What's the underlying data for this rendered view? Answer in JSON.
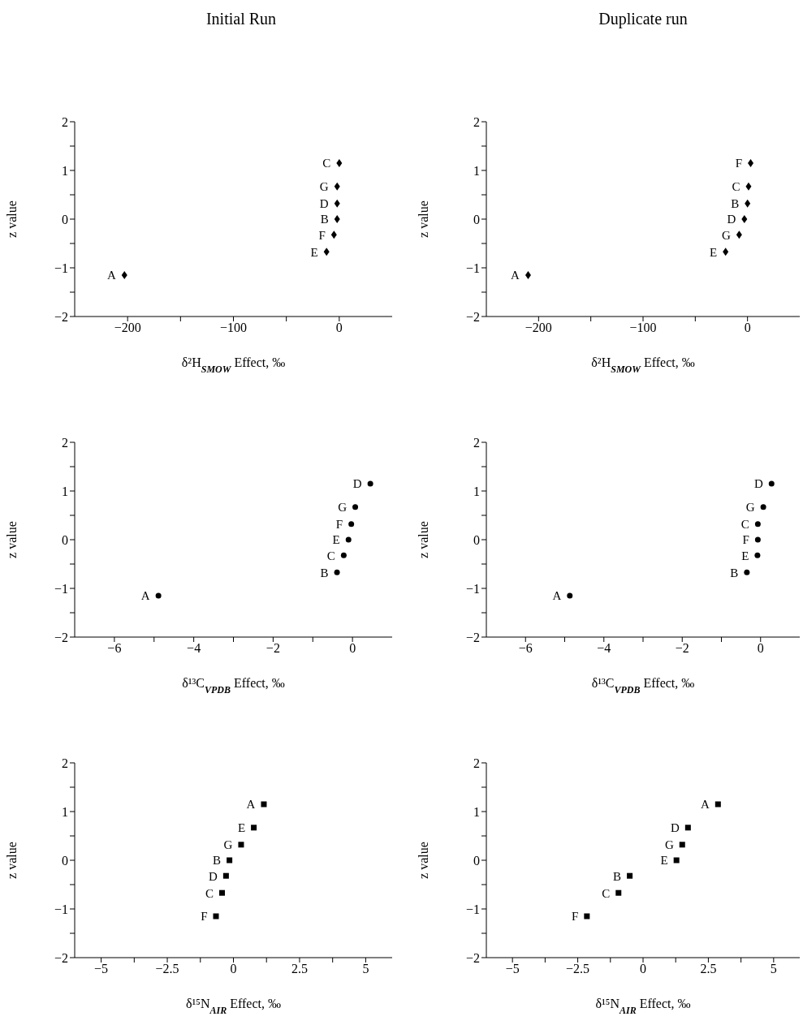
{
  "chart_data": [
    {
      "type": "scatter",
      "title": "Initial Run",
      "marker": "diamond",
      "color": "#000000",
      "xlabel": "δ²H$_{SMOW}$ Effect, ‰",
      "ylabel": "z value",
      "x": [
        0,
        -2,
        -2,
        -2,
        -5,
        -12,
        -203
      ],
      "values": [
        1.15,
        0.67,
        0.32,
        0,
        -0.32,
        -0.67,
        -1.15
      ],
      "value_labels": [
        "C",
        "G",
        "D",
        "B",
        "F",
        "E",
        "A"
      ],
      "xlim": [
        -250,
        50
      ],
      "xticks": [
        -200,
        {
          "value": -150,
          "label": null
        },
        -100,
        {
          "value": -50,
          "label": null
        },
        0
      ],
      "ylim": [
        -2,
        2
      ],
      "yticks": [
        -2,
        {
          "value": -1.5,
          "label": null
        },
        -1,
        {
          "value": -0.5,
          "label": null
        },
        0,
        {
          "value": 0.5,
          "label": null
        },
        1,
        {
          "value": 1.5,
          "label": null
        },
        2
      ]
    },
    {
      "type": "scatter",
      "title": "Duplicate run",
      "marker": "diamond",
      "color": "#000000",
      "xlabel": "δ²H$_{SMOW}$ Effect, ‰",
      "ylabel": "z value",
      "x": [
        3,
        1,
        0,
        -3,
        -8,
        -21,
        -210
      ],
      "values": [
        1.15,
        0.67,
        0.32,
        0,
        -0.32,
        -0.67,
        -1.15
      ],
      "value_labels": [
        "F",
        "C",
        "B",
        "D",
        "G",
        "E",
        "A"
      ],
      "xlim": [
        -250,
        50
      ],
      "xticks": [
        -200,
        {
          "value": -150,
          "label": null
        },
        -100,
        {
          "value": -50,
          "label": null
        },
        0
      ],
      "ylim": [
        -2,
        2
      ],
      "yticks": [
        -2,
        {
          "value": -1.5,
          "label": null
        },
        -1,
        {
          "value": -0.5,
          "label": null
        },
        0,
        {
          "value": 0.5,
          "label": null
        },
        1,
        {
          "value": 1.5,
          "label": null
        },
        2
      ]
    },
    {
      "type": "scatter",
      "marker": "circle",
      "color": "#000000",
      "xlabel": "δ¹³C$_{VPDB}$ Effect, ‰",
      "ylabel": "z value",
      "x": [
        0.45,
        0.07,
        -0.03,
        -0.1,
        -0.22,
        -0.39,
        -4.89
      ],
      "values": [
        1.15,
        0.67,
        0.32,
        0,
        -0.32,
        -0.67,
        -1.15
      ],
      "value_labels": [
        "D",
        "G",
        "F",
        "E",
        "C",
        "B",
        "A"
      ],
      "xlim": [
        -7,
        1
      ],
      "xticks": [
        -6,
        {
          "value": -5,
          "label": null
        },
        -4,
        {
          "value": -3,
          "label": null
        },
        -2,
        {
          "value": -1,
          "label": null
        },
        0
      ],
      "ylim": [
        -2,
        2
      ],
      "yticks": [
        -2,
        {
          "value": -1.5,
          "label": null
        },
        -1,
        {
          "value": -0.5,
          "label": null
        },
        0,
        {
          "value": 0.5,
          "label": null
        },
        1,
        {
          "value": 1.5,
          "label": null
        },
        2
      ]
    },
    {
      "type": "scatter",
      "marker": "circle",
      "color": "#000000",
      "xlabel": "δ¹³C$_{VPDB}$ Effect, ‰",
      "ylabel": "z value",
      "x": [
        0.28,
        0.07,
        -0.07,
        -0.07,
        -0.08,
        -0.35,
        -4.87
      ],
      "values": [
        1.15,
        0.67,
        0.32,
        0,
        -0.32,
        -0.67,
        -1.15
      ],
      "value_labels": [
        "D",
        "G",
        "C",
        "F",
        "E",
        "B",
        "A"
      ],
      "xlim": [
        -7,
        1
      ],
      "xticks": [
        -6,
        {
          "value": -5,
          "label": null
        },
        -4,
        {
          "value": -3,
          "label": null
        },
        -2,
        {
          "value": -1,
          "label": null
        },
        0
      ],
      "ylim": [
        -2,
        2
      ],
      "yticks": [
        -2,
        {
          "value": -1.5,
          "label": null
        },
        -1,
        {
          "value": -0.5,
          "label": null
        },
        0,
        {
          "value": 0.5,
          "label": null
        },
        1,
        {
          "value": 1.5,
          "label": null
        },
        2
      ]
    },
    {
      "type": "scatter",
      "marker": "square",
      "color": "#000000",
      "xlabel": "δ¹⁵N$_{AIR}$ Effect, ‰",
      "ylabel": "z value",
      "x": [
        1.15,
        0.77,
        0.29,
        -0.15,
        -0.28,
        -0.43,
        -0.66
      ],
      "values": [
        1.15,
        0.67,
        0.32,
        0,
        -0.32,
        -0.67,
        -1.15
      ],
      "value_labels": [
        "A",
        "E",
        "G",
        "B",
        "D",
        "C",
        "F"
      ],
      "xlim": [
        -6,
        6
      ],
      "xticks": [
        -5,
        {
          "value": -3.75,
          "label": null
        },
        -2.5,
        {
          "value": -1.25,
          "label": null
        },
        0,
        {
          "value": 1.25,
          "label": null
        },
        2.5,
        {
          "value": 3.75,
          "label": null
        },
        5
      ],
      "ylim": [
        -2,
        2
      ],
      "yticks": [
        -2,
        {
          "value": -1.5,
          "label": null
        },
        -1,
        {
          "value": -0.5,
          "label": null
        },
        0,
        {
          "value": 0.5,
          "label": null
        },
        1,
        {
          "value": 1.5,
          "label": null
        },
        2
      ]
    },
    {
      "type": "scatter",
      "marker": "square",
      "color": "#000000",
      "xlabel": "δ¹⁵N$_{AIR}$ Effect, ‰",
      "ylabel": "z value",
      "x": [
        2.87,
        1.72,
        1.5,
        1.28,
        -0.51,
        -0.94,
        -2.15
      ],
      "values": [
        1.15,
        0.67,
        0.32,
        0,
        -0.32,
        -0.67,
        -1.15
      ],
      "value_labels": [
        "A",
        "D",
        "G",
        "E",
        "B",
        "C",
        "F"
      ],
      "xlim": [
        -6,
        6
      ],
      "xticks": [
        -5,
        {
          "value": -3.75,
          "label": null
        },
        -2.5,
        {
          "value": -1.25,
          "label": null
        },
        0,
        {
          "value": 1.25,
          "label": null
        },
        2.5,
        {
          "value": 3.75,
          "label": null
        },
        5
      ],
      "ylim": [
        -2,
        2
      ],
      "yticks": [
        -2,
        {
          "value": -1.5,
          "label": null
        },
        -1,
        {
          "value": -0.5,
          "label": null
        },
        0,
        {
          "value": 0.5,
          "label": null
        },
        1,
        {
          "value": 1.5,
          "label": null
        },
        2
      ]
    }
  ]
}
